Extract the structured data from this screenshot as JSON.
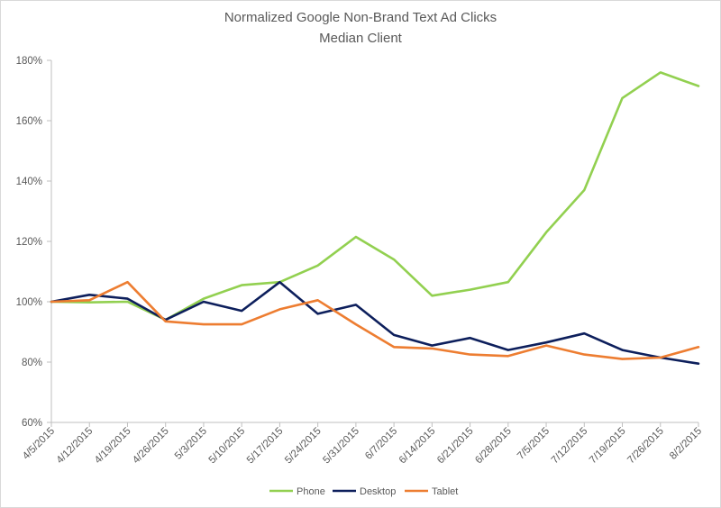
{
  "chart_data": {
    "type": "line",
    "title": "Normalized Google Non-Brand Text Ad Clicks",
    "subtitle": "Median Client",
    "xlabel": "",
    "ylabel": "",
    "categories": [
      "4/5/2015",
      "4/12/2015",
      "4/19/2015",
      "4/26/2015",
      "5/3/2015",
      "5/10/2015",
      "5/17/2015",
      "5/24/2015",
      "5/31/2015",
      "6/7/2015",
      "6/14/2015",
      "6/21/2015",
      "6/28/2015",
      "7/5/2015",
      "7/12/2015",
      "7/19/2015",
      "7/26/2015",
      "8/2/2015"
    ],
    "ylim": [
      60,
      180
    ],
    "yticks": [
      60,
      80,
      100,
      120,
      140,
      160,
      180
    ],
    "ytick_labels": [
      "60%",
      "80%",
      "100%",
      "120%",
      "140%",
      "160%",
      "180%"
    ],
    "grid": false,
    "legend_position": "bottom",
    "series": [
      {
        "name": "Phone",
        "color": "#92d050",
        "values": [
          100,
          99.8,
          100,
          94,
          101,
          105.5,
          106.5,
          112,
          121.5,
          114,
          102,
          104,
          106.5,
          123,
          137,
          167.5,
          176,
          171.5
        ]
      },
      {
        "name": "Desktop",
        "color": "#0d1f5c",
        "values": [
          100,
          102.3,
          101,
          94,
          100,
          97,
          106.5,
          96,
          99,
          89,
          85.5,
          88,
          84,
          86.5,
          89.5,
          84,
          81.5,
          79.5
        ]
      },
      {
        "name": "Tablet",
        "color": "#ed7d31",
        "values": [
          100,
          100.5,
          106.5,
          93.5,
          92.5,
          92.5,
          97.5,
          100.5,
          92.5,
          85,
          84.5,
          82.5,
          82,
          85.5,
          82.5,
          81,
          81.5,
          85
        ]
      }
    ]
  }
}
